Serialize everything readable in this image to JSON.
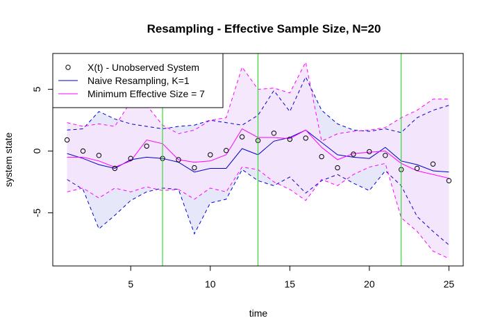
{
  "chart_data": {
    "type": "line",
    "title": "Resampling - Effective Sample Size, N=20",
    "xlabel": "time",
    "ylabel": "system state",
    "xlim": [
      0.1,
      25.9
    ],
    "ylim": [
      -9.3,
      7.9
    ],
    "x_ticks": [
      5,
      10,
      15,
      20,
      25
    ],
    "y_ticks": [
      -5,
      0,
      5
    ],
    "grid": false,
    "legend_position": "top-left",
    "legend": [
      {
        "label": "X(t) - Unobserved System",
        "symbol": "point",
        "color": "#000000"
      },
      {
        "label": "Naive Resampling, K=1",
        "symbol": "line",
        "color": "#0000cd"
      },
      {
        "label": "Minimum Effective Size = 7",
        "symbol": "line",
        "color": "#ff00ff"
      }
    ],
    "x": [
      1,
      2,
      3,
      4,
      5,
      6,
      7,
      8,
      9,
      10,
      11,
      12,
      13,
      14,
      15,
      16,
      17,
      18,
      19,
      20,
      21,
      22,
      23,
      24,
      25
    ],
    "observed": [
      0.9,
      0.0,
      -0.35,
      -1.4,
      -0.6,
      0.4,
      -0.6,
      -0.7,
      -1.35,
      -0.3,
      0.05,
      1.15,
      0.85,
      1.45,
      0.95,
      1.05,
      -0.45,
      -1.35,
      -0.25,
      -0.05,
      -0.35,
      -1.5,
      -1.4,
      -1.05,
      -2.4
    ],
    "series": [
      {
        "name": "Naive Resampling, K=1",
        "color": "#0000cd",
        "band_fill": "#e6e8fa",
        "mean": [
          -0.2,
          -0.6,
          -1.1,
          -1.4,
          -0.7,
          -0.5,
          -0.6,
          -0.9,
          -1.7,
          -1.4,
          -1.4,
          0.2,
          -0.3,
          0.8,
          1.1,
          1.7,
          0.7,
          -0.3,
          -0.5,
          -0.6,
          0.3,
          -0.8,
          -1.1,
          -1.6,
          -1.7
        ],
        "upper": [
          1.7,
          1.8,
          3.2,
          2.6,
          2.2,
          2.0,
          1.8,
          2.0,
          2.1,
          2.5,
          2.3,
          2.1,
          2.9,
          4.9,
          3.2,
          6.0,
          3.3,
          2.2,
          1.7,
          1.6,
          1.8,
          1.5,
          2.7,
          3.3,
          3.7
        ],
        "lower": [
          -2.3,
          -3.1,
          -6.3,
          -5.2,
          -4.0,
          -3.3,
          -3.0,
          -3.1,
          -6.7,
          -4.2,
          -3.9,
          -1.5,
          -2.4,
          -2.8,
          -2.1,
          -3.4,
          -2.4,
          -1.9,
          -2.6,
          -3.2,
          -1.6,
          -2.8,
          -5.3,
          -6.5,
          -7.6
        ]
      },
      {
        "name": "Minimum Effective Size = 7",
        "color": "#ff00ff",
        "band_fill": "#f4e4fb",
        "mean": [
          -0.5,
          -0.5,
          -0.8,
          -1.3,
          -0.8,
          0.9,
          0.6,
          -0.7,
          -0.9,
          -0.8,
          -0.3,
          1.8,
          1.1,
          1.1,
          1.0,
          1.7,
          0.3,
          -0.7,
          -0.2,
          -0.1,
          0.0,
          -1.0,
          -1.6,
          -1.9,
          -2.2
        ],
        "upper": [
          2.3,
          2.0,
          2.2,
          2.0,
          4.0,
          3.7,
          2.1,
          1.4,
          1.7,
          2.5,
          2.7,
          6.8,
          5.0,
          5.1,
          4.7,
          7.2,
          0.8,
          1.4,
          1.6,
          1.7,
          1.9,
          2.7,
          3.3,
          4.2,
          4.2
        ],
        "lower": [
          -3.3,
          -3.0,
          -3.8,
          -3.0,
          -3.3,
          -2.9,
          -3.2,
          -3.1,
          -3.9,
          -3.0,
          -3.3,
          -1.3,
          -1.5,
          -2.5,
          -3.1,
          -4.0,
          -2.3,
          -2.8,
          -1.9,
          -1.3,
          -1.0,
          -5.4,
          -6.5,
          -8.1,
          -8.7
        ]
      }
    ],
    "vertical_lines": {
      "color": "#33dd33",
      "x": [
        7,
        13,
        22
      ]
    }
  }
}
